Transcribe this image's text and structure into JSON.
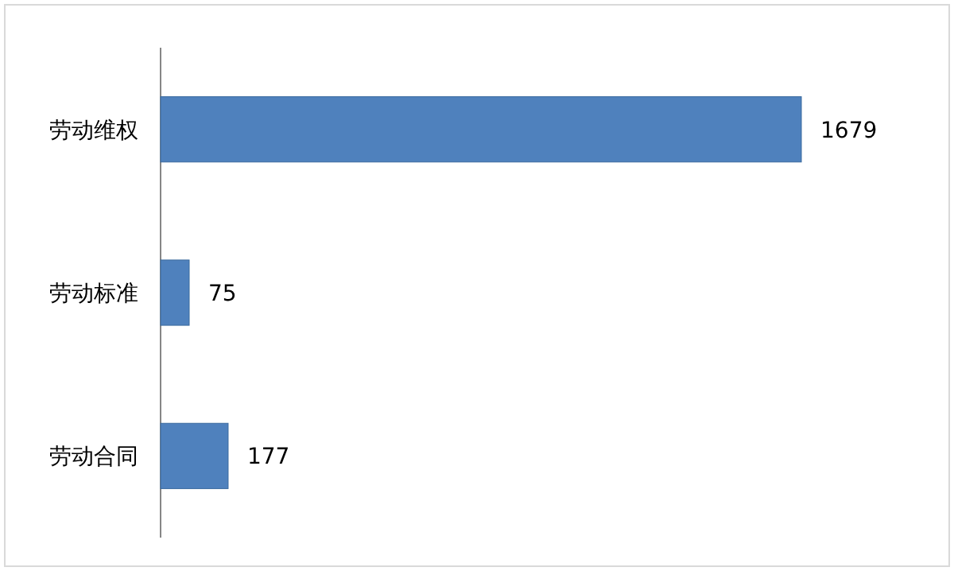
{
  "chart_data": {
    "type": "bar",
    "orientation": "horizontal",
    "categories": [
      "劳动维权",
      "劳动标准",
      "劳动合同"
    ],
    "values": [
      1679,
      75,
      177
    ],
    "color": "#4f81bd",
    "data_labels": true
  }
}
